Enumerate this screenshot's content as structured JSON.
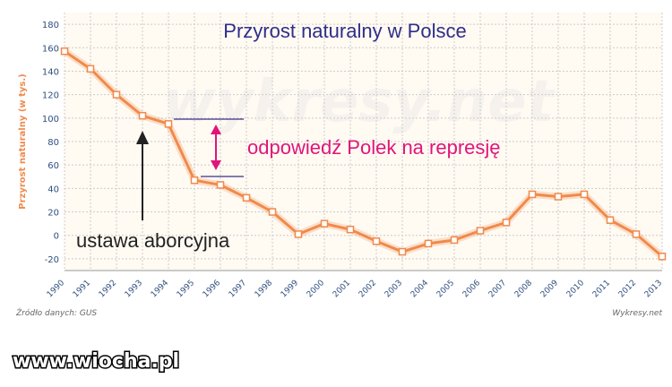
{
  "chart_data": {
    "type": "line",
    "title": "Przyrost  naturalny w Polsce",
    "ylabel": "Przyrost naturalny (w tys.)",
    "xlabel": "",
    "ylim": [
      -30,
      190
    ],
    "yticks": [
      -20,
      0,
      20,
      40,
      60,
      80,
      100,
      120,
      140,
      160,
      180
    ],
    "categories": [
      "1990",
      "1991",
      "1992",
      "1993",
      "1994",
      "1995",
      "1996",
      "1997",
      "1998",
      "1999",
      "2000",
      "2001",
      "2002",
      "2003",
      "2004",
      "2005",
      "2006",
      "2007",
      "2008",
      "2009",
      "2010",
      "2011",
      "2012",
      "2013"
    ],
    "series": [
      {
        "values": [
          157,
          142,
          120,
          102,
          95,
          47,
          43,
          32,
          20,
          1,
          10,
          5,
          -5,
          -14,
          -7,
          -4,
          4,
          11,
          35,
          33,
          35,
          13,
          1,
          -18
        ]
      }
    ],
    "series_color": "#f08a4b",
    "grid": true,
    "annotations": {
      "pink_text": "odpowiedź Polek na represję",
      "dark_text": "ustawa aborcyjna"
    },
    "source": "Źródło danych: GUS",
    "watermark": "wykresy.net",
    "credit": "Wykresy.net"
  },
  "site_watermark": "www.wiocha.pl",
  "colors": {
    "grid": "#cccccc",
    "axis_title": "#f08a4b",
    "tick": "#2f4f7f",
    "pink": "#e0157a",
    "bracket": "#3a2f8a"
  }
}
